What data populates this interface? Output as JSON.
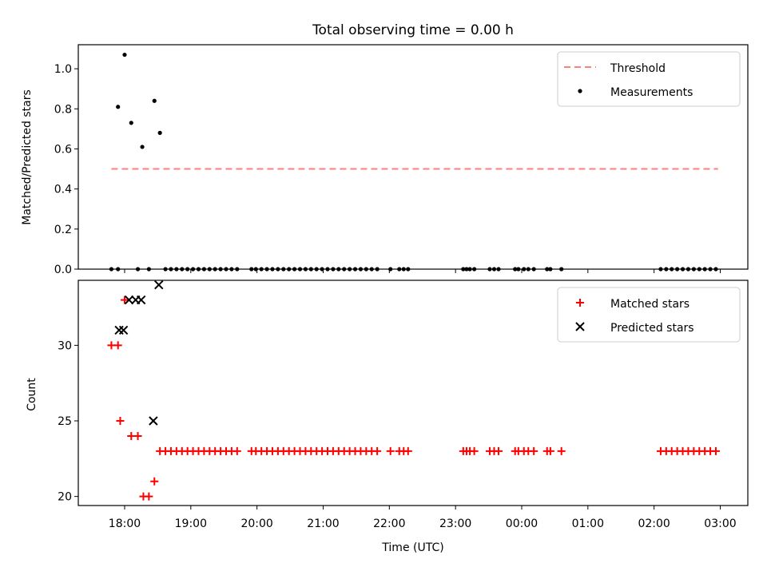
{
  "chart_data": [
    {
      "type": "scatter",
      "title": "Total observing time = 0.00 h",
      "xlabel": "",
      "ylabel": "Matched/Predicted stars",
      "x_unit": "time (UTC)",
      "xlim": [
        "17:18",
        "03:25"
      ],
      "ylim": [
        0,
        1.12
      ],
      "yticks": [
        0.0,
        0.2,
        0.4,
        0.6,
        0.8,
        1.0
      ],
      "yticklabels": [
        "0.0",
        "0.2",
        "0.4",
        "0.6",
        "0.8",
        "1.0"
      ],
      "grid": false,
      "legend_position": "top-right",
      "series": [
        {
          "name": "Threshold",
          "kind": "line",
          "style": "dashed",
          "color": "#ff7f7f",
          "points": [
            {
              "x": "17:48",
              "y": 0.5
            },
            {
              "x": "02:58",
              "y": 0.5
            }
          ]
        },
        {
          "name": "Measurements",
          "kind": "scatter",
          "marker": "dot",
          "color": "#000000",
          "points": [
            {
              "x": "17:48",
              "y": 0.0
            },
            {
              "x": "17:54",
              "y": 0.0
            },
            {
              "x": "17:54",
              "y": 0.81
            },
            {
              "x": "18:00",
              "y": 1.07
            },
            {
              "x": "18:06",
              "y": 0.73
            },
            {
              "x": "18:12",
              "y": 0.0
            },
            {
              "x": "18:16",
              "y": 0.61
            },
            {
              "x": "18:22",
              "y": 0.0
            },
            {
              "x": "18:27",
              "y": 0.84
            },
            {
              "x": "18:32",
              "y": 0.68
            },
            {
              "x": "18:37",
              "y": 0.0
            },
            {
              "x": "18:42",
              "y": 0.0
            },
            {
              "x": "18:47",
              "y": 0.0
            },
            {
              "x": "18:52",
              "y": 0.0
            },
            {
              "x": "18:57",
              "y": 0.0
            },
            {
              "x": "19:02",
              "y": 0.0
            },
            {
              "x": "19:07",
              "y": 0.0
            },
            {
              "x": "19:12",
              "y": 0.0
            },
            {
              "x": "19:17",
              "y": 0.0
            },
            {
              "x": "19:22",
              "y": 0.0
            },
            {
              "x": "19:27",
              "y": 0.0
            },
            {
              "x": "19:32",
              "y": 0.0
            },
            {
              "x": "19:37",
              "y": 0.0
            },
            {
              "x": "19:42",
              "y": 0.0
            },
            {
              "x": "19:55",
              "y": 0.0
            },
            {
              "x": "19:59",
              "y": 0.0
            },
            {
              "x": "20:04",
              "y": 0.0
            },
            {
              "x": "20:09",
              "y": 0.0
            },
            {
              "x": "20:14",
              "y": 0.0
            },
            {
              "x": "20:19",
              "y": 0.0
            },
            {
              "x": "20:24",
              "y": 0.0
            },
            {
              "x": "20:29",
              "y": 0.0
            },
            {
              "x": "20:34",
              "y": 0.0
            },
            {
              "x": "20:39",
              "y": 0.0
            },
            {
              "x": "20:44",
              "y": 0.0
            },
            {
              "x": "20:49",
              "y": 0.0
            },
            {
              "x": "20:54",
              "y": 0.0
            },
            {
              "x": "20:59",
              "y": 0.0
            },
            {
              "x": "21:04",
              "y": 0.0
            },
            {
              "x": "21:09",
              "y": 0.0
            },
            {
              "x": "21:14",
              "y": 0.0
            },
            {
              "x": "21:19",
              "y": 0.0
            },
            {
              "x": "21:24",
              "y": 0.0
            },
            {
              "x": "21:29",
              "y": 0.0
            },
            {
              "x": "21:34",
              "y": 0.0
            },
            {
              "x": "21:39",
              "y": 0.0
            },
            {
              "x": "21:44",
              "y": 0.0
            },
            {
              "x": "21:49",
              "y": 0.0
            },
            {
              "x": "22:01",
              "y": 0.0
            },
            {
              "x": "22:09",
              "y": 0.0
            },
            {
              "x": "22:13",
              "y": 0.0
            },
            {
              "x": "22:17",
              "y": 0.0
            },
            {
              "x": "23:07",
              "y": 0.0
            },
            {
              "x": "23:10",
              "y": 0.0
            },
            {
              "x": "23:13",
              "y": 0.0
            },
            {
              "x": "23:17",
              "y": 0.0
            },
            {
              "x": "23:31",
              "y": 0.0
            },
            {
              "x": "23:35",
              "y": 0.0
            },
            {
              "x": "23:39",
              "y": 0.0
            },
            {
              "x": "23:54",
              "y": 0.0
            },
            {
              "x": "23:57",
              "y": 0.0
            },
            {
              "x": "00:02",
              "y": 0.0
            },
            {
              "x": "00:06",
              "y": 0.0
            },
            {
              "x": "00:11",
              "y": 0.0
            },
            {
              "x": "00:23",
              "y": 0.0
            },
            {
              "x": "00:26",
              "y": 0.0
            },
            {
              "x": "00:36",
              "y": 0.0
            },
            {
              "x": "02:06",
              "y": 0.0
            },
            {
              "x": "02:11",
              "y": 0.0
            },
            {
              "x": "02:16",
              "y": 0.0
            },
            {
              "x": "02:21",
              "y": 0.0
            },
            {
              "x": "02:26",
              "y": 0.0
            },
            {
              "x": "02:31",
              "y": 0.0
            },
            {
              "x": "02:36",
              "y": 0.0
            },
            {
              "x": "02:41",
              "y": 0.0
            },
            {
              "x": "02:46",
              "y": 0.0
            },
            {
              "x": "02:51",
              "y": 0.0
            },
            {
              "x": "02:56",
              "y": 0.0
            }
          ]
        }
      ]
    },
    {
      "type": "scatter",
      "title": "",
      "xlabel": "Time (UTC)",
      "ylabel": "Count",
      "x_unit": "time (UTC)",
      "xlim": [
        "17:18",
        "03:25"
      ],
      "ylim": [
        19.4,
        34.3
      ],
      "yticks": [
        20,
        25,
        30
      ],
      "yticklabels": [
        "20",
        "25",
        "30"
      ],
      "xticks": [
        "18:00",
        "19:00",
        "20:00",
        "21:00",
        "22:00",
        "23:00",
        "00:00",
        "01:00",
        "02:00",
        "03:00"
      ],
      "xticklabels": [
        "18:00",
        "19:00",
        "20:00",
        "21:00",
        "22:00",
        "23:00",
        "00:00",
        "01:00",
        "02:00",
        "03:00"
      ],
      "grid": false,
      "legend_position": "top-right",
      "series": [
        {
          "name": "Matched stars",
          "kind": "scatter",
          "marker": "plus",
          "color": "#ff0000",
          "points": [
            {
              "x": "17:48",
              "y": 30
            },
            {
              "x": "17:54",
              "y": 30
            },
            {
              "x": "17:56",
              "y": 25
            },
            {
              "x": "18:00",
              "y": 33
            },
            {
              "x": "18:06",
              "y": 24
            },
            {
              "x": "18:12",
              "y": 24
            },
            {
              "x": "18:17",
              "y": 20
            },
            {
              "x": "18:22",
              "y": 20
            },
            {
              "x": "18:27",
              "y": 21
            },
            {
              "x": "18:32",
              "y": 23
            },
            {
              "x": "18:37",
              "y": 23
            },
            {
              "x": "18:42",
              "y": 23
            },
            {
              "x": "18:47",
              "y": 23
            },
            {
              "x": "18:52",
              "y": 23
            },
            {
              "x": "18:57",
              "y": 23
            },
            {
              "x": "19:02",
              "y": 23
            },
            {
              "x": "19:07",
              "y": 23
            },
            {
              "x": "19:12",
              "y": 23
            },
            {
              "x": "19:17",
              "y": 23
            },
            {
              "x": "19:22",
              "y": 23
            },
            {
              "x": "19:27",
              "y": 23
            },
            {
              "x": "19:32",
              "y": 23
            },
            {
              "x": "19:37",
              "y": 23
            },
            {
              "x": "19:42",
              "y": 23
            },
            {
              "x": "19:55",
              "y": 23
            },
            {
              "x": "19:59",
              "y": 23
            },
            {
              "x": "20:04",
              "y": 23
            },
            {
              "x": "20:09",
              "y": 23
            },
            {
              "x": "20:14",
              "y": 23
            },
            {
              "x": "20:19",
              "y": 23
            },
            {
              "x": "20:24",
              "y": 23
            },
            {
              "x": "20:29",
              "y": 23
            },
            {
              "x": "20:34",
              "y": 23
            },
            {
              "x": "20:39",
              "y": 23
            },
            {
              "x": "20:44",
              "y": 23
            },
            {
              "x": "20:49",
              "y": 23
            },
            {
              "x": "20:54",
              "y": 23
            },
            {
              "x": "20:59",
              "y": 23
            },
            {
              "x": "21:04",
              "y": 23
            },
            {
              "x": "21:09",
              "y": 23
            },
            {
              "x": "21:14",
              "y": 23
            },
            {
              "x": "21:19",
              "y": 23
            },
            {
              "x": "21:24",
              "y": 23
            },
            {
              "x": "21:29",
              "y": 23
            },
            {
              "x": "21:34",
              "y": 23
            },
            {
              "x": "21:39",
              "y": 23
            },
            {
              "x": "21:44",
              "y": 23
            },
            {
              "x": "21:49",
              "y": 23
            },
            {
              "x": "22:01",
              "y": 23
            },
            {
              "x": "22:09",
              "y": 23
            },
            {
              "x": "22:13",
              "y": 23
            },
            {
              "x": "22:17",
              "y": 23
            },
            {
              "x": "23:07",
              "y": 23
            },
            {
              "x": "23:10",
              "y": 23
            },
            {
              "x": "23:13",
              "y": 23
            },
            {
              "x": "23:17",
              "y": 23
            },
            {
              "x": "23:31",
              "y": 23
            },
            {
              "x": "23:35",
              "y": 23
            },
            {
              "x": "23:39",
              "y": 23
            },
            {
              "x": "23:54",
              "y": 23
            },
            {
              "x": "23:57",
              "y": 23
            },
            {
              "x": "00:02",
              "y": 23
            },
            {
              "x": "00:06",
              "y": 23
            },
            {
              "x": "00:11",
              "y": 23
            },
            {
              "x": "00:23",
              "y": 23
            },
            {
              "x": "00:26",
              "y": 23
            },
            {
              "x": "00:36",
              "y": 23
            },
            {
              "x": "02:06",
              "y": 23
            },
            {
              "x": "02:11",
              "y": 23
            },
            {
              "x": "02:16",
              "y": 23
            },
            {
              "x": "02:21",
              "y": 23
            },
            {
              "x": "02:26",
              "y": 23
            },
            {
              "x": "02:31",
              "y": 23
            },
            {
              "x": "02:36",
              "y": 23
            },
            {
              "x": "02:41",
              "y": 23
            },
            {
              "x": "02:46",
              "y": 23
            },
            {
              "x": "02:51",
              "y": 23
            },
            {
              "x": "02:56",
              "y": 23
            }
          ]
        },
        {
          "name": "Predicted stars",
          "kind": "scatter",
          "marker": "x",
          "color": "#000000",
          "points": [
            {
              "x": "17:55",
              "y": 31
            },
            {
              "x": "17:59",
              "y": 31
            },
            {
              "x": "18:04",
              "y": 33
            },
            {
              "x": "18:10",
              "y": 33
            },
            {
              "x": "18:15",
              "y": 33
            },
            {
              "x": "18:26",
              "y": 25
            },
            {
              "x": "18:31",
              "y": 34
            }
          ]
        }
      ]
    }
  ]
}
